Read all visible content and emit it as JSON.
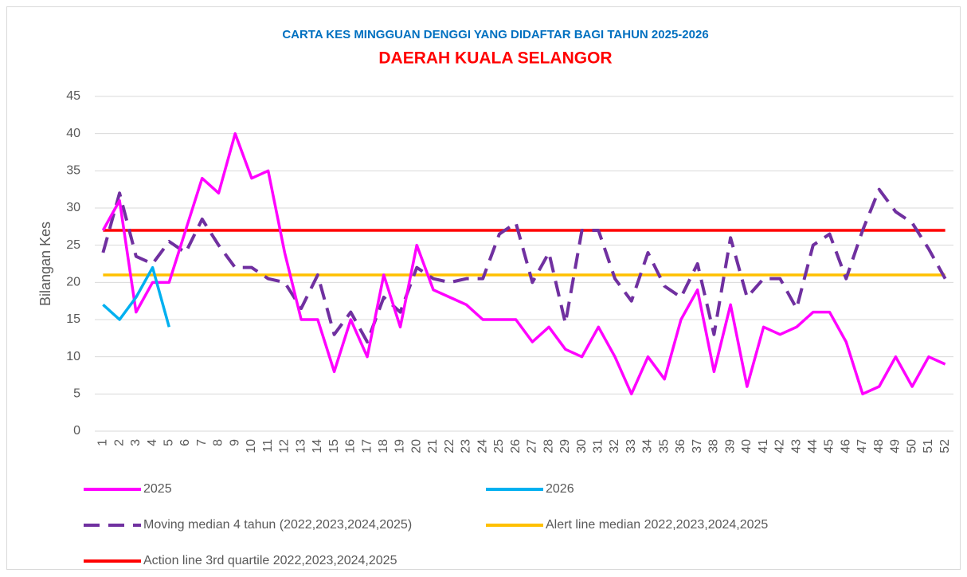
{
  "chart_data": {
    "type": "line",
    "title": "CARTA KES MINGGUAN DENGGI YANG DIDAFTAR BAGI TAHUN 2025-2026",
    "subtitle": "DAERAH KUALA SELANGOR",
    "y_label": "Bilangan Kes",
    "categories": [
      "1",
      "2",
      "3",
      "4",
      "5",
      "6",
      "7",
      "8",
      "9",
      "10",
      "11",
      "12",
      "13",
      "14",
      "15",
      "16",
      "17",
      "18",
      "19",
      "20",
      "21",
      "22",
      "23",
      "24",
      "25",
      "26",
      "27",
      "28",
      "29",
      "30",
      "31",
      "32",
      "33",
      "34",
      "35",
      "36",
      "37",
      "38",
      "39",
      "40",
      "41",
      "42",
      "43",
      "44",
      "45",
      "46",
      "47",
      "48",
      "49",
      "50",
      "51",
      "52"
    ],
    "series": [
      {
        "name": "2025",
        "color": "#ff00ff",
        "dashed": false,
        "values": [
          27,
          31,
          16,
          20,
          20,
          27,
          34,
          32,
          40,
          34,
          35,
          24,
          15,
          15,
          8,
          15,
          10,
          21,
          14,
          25,
          19,
          18,
          17,
          15,
          15,
          15,
          12,
          14,
          11,
          10,
          14,
          10,
          5,
          10,
          7,
          15,
          19,
          8,
          17,
          6,
          14,
          13,
          14,
          16,
          16,
          12,
          5,
          6,
          10,
          6,
          10,
          9
        ]
      },
      {
        "name": "2026",
        "color": "#00b0f0",
        "dashed": false,
        "values": [
          17,
          15,
          18,
          22,
          14,
          null,
          null,
          null,
          null,
          null,
          null,
          null,
          null,
          null,
          null,
          null,
          null,
          null,
          null,
          null,
          null,
          null,
          null,
          null,
          null,
          null,
          null,
          null,
          null,
          null,
          null,
          null,
          null,
          null,
          null,
          null,
          null,
          null,
          null,
          null,
          null,
          null,
          null,
          null,
          null,
          null,
          null,
          null,
          null,
          null,
          null,
          null
        ]
      },
      {
        "name": "Moving median 4 tahun (2022,2023,2024,2025)",
        "color": "#7030a0",
        "dashed": true,
        "values": [
          24,
          32,
          23.5,
          22.5,
          25.5,
          24,
          28.5,
          25,
          22,
          22,
          20.5,
          20,
          16.5,
          21,
          13,
          16,
          12,
          18,
          16,
          22,
          20.5,
          20,
          20.5,
          20.5,
          26.5,
          28,
          20,
          24,
          14.5,
          27,
          27,
          20.5,
          17.5,
          24,
          19.5,
          18,
          22.5,
          13,
          26,
          18,
          20.5,
          20.5,
          16.5,
          25,
          26.5,
          20.5,
          27,
          32.5,
          29.5,
          28,
          24.5,
          20.5
        ]
      },
      {
        "name": "Alert line median 2022,2023,2024,2025",
        "color": "#ffc000",
        "dashed": false,
        "values": [
          21,
          21,
          21,
          21,
          21,
          21,
          21,
          21,
          21,
          21,
          21,
          21,
          21,
          21,
          21,
          21,
          21,
          21,
          21,
          21,
          21,
          21,
          21,
          21,
          21,
          21,
          21,
          21,
          21,
          21,
          21,
          21,
          21,
          21,
          21,
          21,
          21,
          21,
          21,
          21,
          21,
          21,
          21,
          21,
          21,
          21,
          21,
          21,
          21,
          21,
          21,
          21
        ]
      },
      {
        "name": "Action line 3rd quartile 2022,2023,2024,2025",
        "color": "#ff0000",
        "dashed": false,
        "values": [
          27,
          27,
          27,
          27,
          27,
          27,
          27,
          27,
          27,
          27,
          27,
          27,
          27,
          27,
          27,
          27,
          27,
          27,
          27,
          27,
          27,
          27,
          27,
          27,
          27,
          27,
          27,
          27,
          27,
          27,
          27,
          27,
          27,
          27,
          27,
          27,
          27,
          27,
          27,
          27,
          27,
          27,
          27,
          27,
          27,
          27,
          27,
          27,
          27,
          27,
          27,
          27
        ]
      }
    ],
    "ylim": [
      0,
      45
    ],
    "yticks": [
      0,
      5,
      10,
      15,
      20,
      25,
      30,
      35,
      40,
      45
    ],
    "grid": true
  }
}
